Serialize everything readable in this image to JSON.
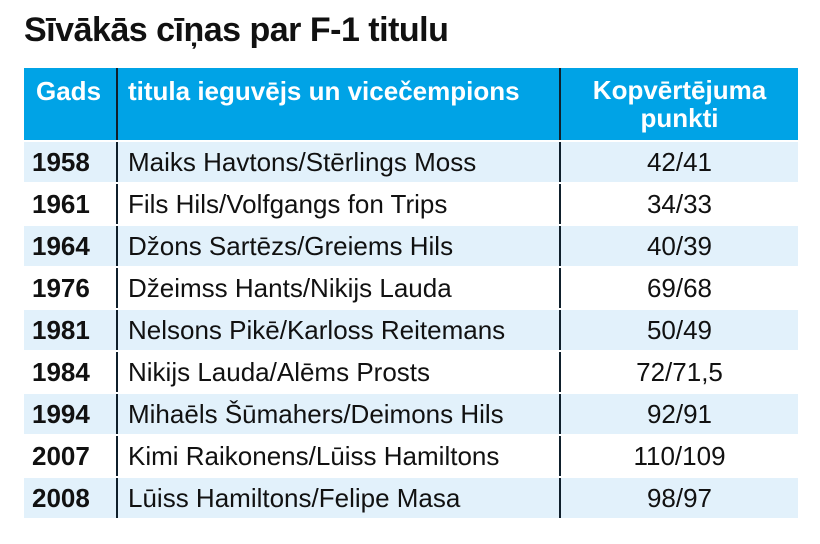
{
  "title": "Sīvākās cīņas par F-1 titulu",
  "colors": {
    "header": "#00a3e6",
    "stripe": "#e2f1fb"
  },
  "header": {
    "year": "Gads",
    "drivers": "titula ieguvējs un vicečempions",
    "points_line1": "Kopvērtējuma",
    "points_line2": "punkti"
  },
  "rows": [
    {
      "year": "1958",
      "drivers": "Maiks Havtons/Stērlings Moss",
      "points": "42/41"
    },
    {
      "year": "1961",
      "drivers": "Fils Hils/Volfgangs fon Trips",
      "points": "34/33"
    },
    {
      "year": "1964",
      "drivers": "Džons Sartēzs/Greiems Hils",
      "points": "40/39"
    },
    {
      "year": "1976",
      "drivers": "Džeimss Hants/Nikijs Lauda",
      "points": "69/68"
    },
    {
      "year": "1981",
      "drivers": "Nelsons Pikē/Karloss Reitemans",
      "points": "50/49"
    },
    {
      "year": "1984",
      "drivers": "Nikijs Lauda/Alēms Prosts",
      "points": "72/71,5"
    },
    {
      "year": "1994",
      "drivers": "Mihaēls Šūmahers/Deimons Hils",
      "points": "92/91"
    },
    {
      "year": "2007",
      "drivers": "Kimi Raikonens/Lūiss Hamiltons",
      "points": "110/109"
    },
    {
      "year": "2008",
      "drivers": "Lūiss Hamiltons/Felipe Masa",
      "points": "98/97"
    }
  ]
}
